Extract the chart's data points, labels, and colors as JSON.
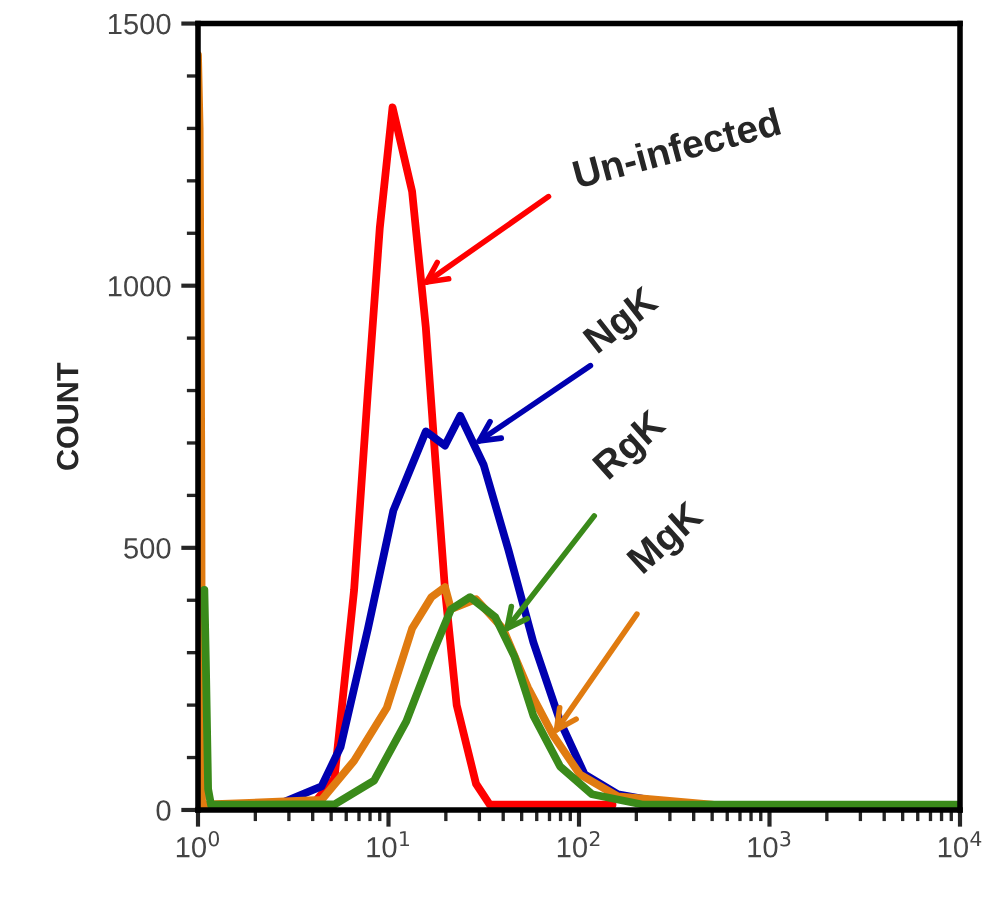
{
  "chart_data": {
    "type": "line",
    "ylabel": "COUNT",
    "xlim": [
      1,
      10000
    ],
    "xticks": [
      {
        "value": 1,
        "label": "10$^{0}$"
      },
      {
        "value": 10,
        "label": "10$^{1}$"
      },
      {
        "value": 100,
        "label": "10$^{2}$"
      },
      {
        "value": 1000,
        "label": "10$^{3}$"
      },
      {
        "value": 10000,
        "label": "10$^{4}$"
      }
    ],
    "ylim": [
      0,
      1500
    ],
    "yticks": [
      0,
      500,
      1000,
      1500
    ],
    "log": "x",
    "grid": false,
    "legend": false,
    "marker": "none",
    "line_style": "solid",
    "series": [
      {
        "color": "#ff0000",
        "x": [
          1.5,
          4,
          5.2,
          6.6,
          7.8,
          9,
          10.5,
          13.3,
          15.7,
          17.6,
          19.8,
          22.8,
          28.8,
          34,
          150
        ],
        "values": [
          10,
          10,
          60,
          420,
          800,
          1110,
          1340,
          1180,
          920,
          670,
          420,
          200,
          50,
          10,
          10
        ]
      },
      {
        "color": "#0000b0",
        "x": [
          2.6,
          4.45,
          5.6,
          7.8,
          10.6,
          15.7,
          19.8,
          23.8,
          31.6,
          42.6,
          57.6,
          79.6,
          107,
          160,
          325
        ],
        "values": [
          10,
          45,
          120,
          346,
          571,
          722,
          695,
          752,
          658,
          496,
          320,
          169,
          68,
          30,
          10
        ]
      },
      {
        "color": "#e07b10",
        "x": [
          1,
          1.02,
          1.04,
          1.05,
          4.45,
          6.6,
          9.8,
          13.3,
          16.8,
          19.8,
          21.3,
          28.8,
          39.9,
          54,
          73,
          101,
          160,
          500
        ],
        "values": [
          1440,
          1300,
          690,
          10,
          19,
          94,
          195,
          346,
          406,
          425,
          383,
          402,
          346,
          233,
          143,
          68,
          26,
          10
        ]
      },
      {
        "color": "#3a8a1a",
        "x": [
          1.08,
          1.1,
          1.13,
          1.17,
          5.24,
          8.4,
          12.4,
          16.8,
          21.3,
          26.8,
          36.3,
          45.8,
          57.6,
          79.6,
          117,
          218,
          10000
        ],
        "values": [
          420,
          280,
          40,
          10,
          11,
          56,
          169,
          293,
          383,
          406,
          368,
          293,
          180,
          83,
          30,
          10,
          10
        ]
      }
    ],
    "annotations": [
      {
        "text": "Un-infected",
        "x": 14.9,
        "y": 1000
      },
      {
        "text": "NgK",
        "x": 28.1,
        "y": 697
      },
      {
        "text": "RgK",
        "x": 40,
        "y": 337
      },
      {
        "text": "MgK",
        "x": 73,
        "y": 143
      }
    ]
  }
}
